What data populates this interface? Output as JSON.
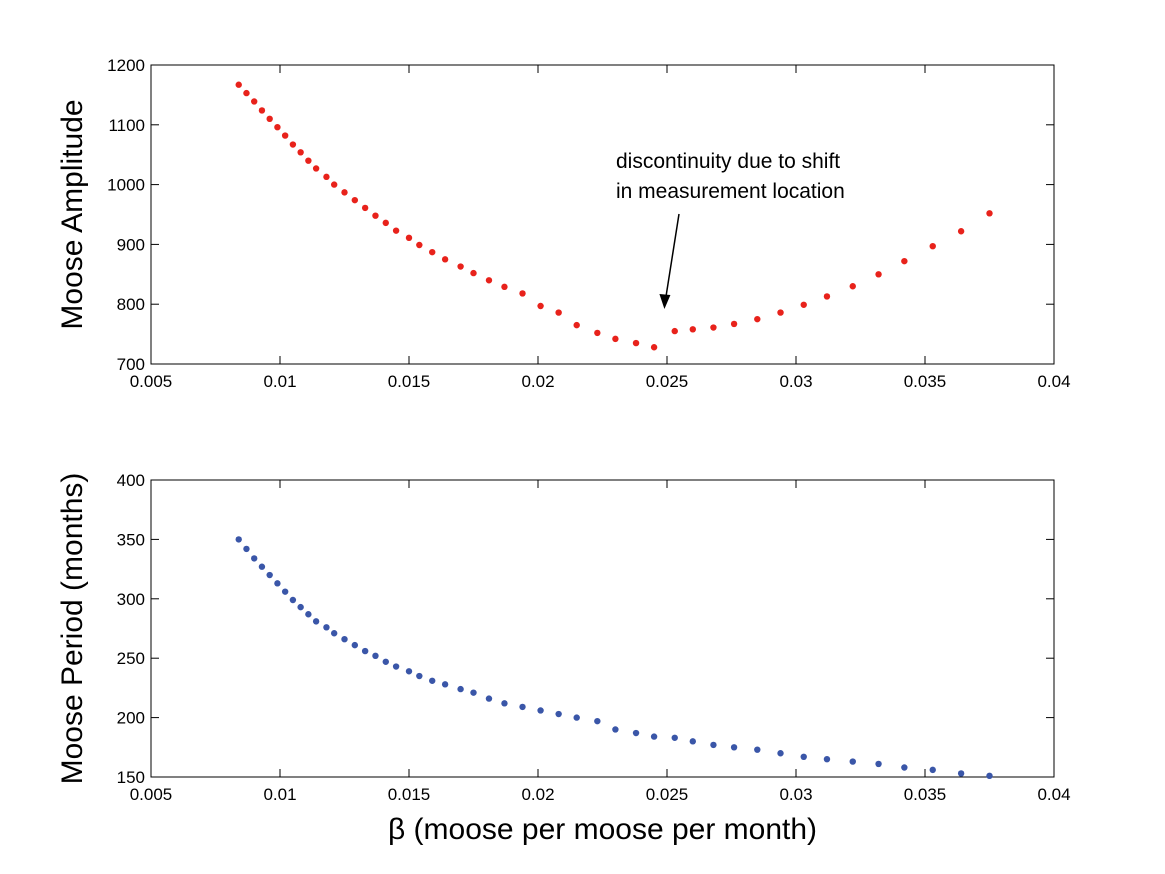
{
  "chart_data": [
    {
      "type": "scatter",
      "xlim": [
        0.005,
        0.04
      ],
      "ylim": [
        700,
        1200
      ],
      "xticks": [
        "0.005",
        "0.01",
        "0.015",
        "0.02",
        "0.025",
        "0.03",
        "0.035",
        "0.04"
      ],
      "yticks": [
        "700",
        "800",
        "900",
        "1000",
        "1100",
        "1200"
      ],
      "xlabel": "",
      "ylabel": "Moose Amplitude",
      "color": "#e8221b",
      "annotation": {
        "lines": [
          "discontinuity due to shift",
          "in measurement location"
        ],
        "arrow_tip": [
          0.0249,
          792
        ]
      },
      "x": [
        0.0084,
        0.0087,
        0.009,
        0.0093,
        0.0096,
        0.0099,
        0.0102,
        0.0105,
        0.0108,
        0.0111,
        0.0114,
        0.0118,
        0.0121,
        0.0125,
        0.0129,
        0.0133,
        0.0137,
        0.0141,
        0.0145,
        0.015,
        0.0154,
        0.0159,
        0.0164,
        0.017,
        0.0175,
        0.0181,
        0.0187,
        0.0194,
        0.0201,
        0.0208,
        0.0215,
        0.0223,
        0.023,
        0.0238,
        0.0245,
        0.0253,
        0.026,
        0.0268,
        0.0276,
        0.0285,
        0.0294,
        0.0303,
        0.0312,
        0.0322,
        0.0332,
        0.0342,
        0.0353,
        0.0364,
        0.0375
      ],
      "y": [
        1167,
        1153,
        1139,
        1124,
        1110,
        1096,
        1082,
        1067,
        1054,
        1040,
        1027,
        1013,
        1000,
        987,
        974,
        961,
        948,
        936,
        923,
        911,
        899,
        887,
        875,
        863,
        852,
        840,
        829,
        818,
        797,
        786,
        765,
        752,
        742,
        735,
        728,
        755,
        758,
        761,
        767,
        775,
        786,
        799,
        813,
        830,
        850,
        872,
        897,
        922,
        952
      ]
    },
    {
      "type": "scatter",
      "xlim": [
        0.005,
        0.04
      ],
      "ylim": [
        150,
        400
      ],
      "xticks": [
        "0.005",
        "0.01",
        "0.015",
        "0.02",
        "0.025",
        "0.03",
        "0.035",
        "0.04"
      ],
      "yticks": [
        "150",
        "200",
        "250",
        "300",
        "350",
        "400"
      ],
      "xlabel": "β (moose per moose per month)",
      "ylabel": "Moose Period (months)",
      "color": "#3a56a8",
      "x": [
        0.0084,
        0.0087,
        0.009,
        0.0093,
        0.0096,
        0.0099,
        0.0102,
        0.0105,
        0.0108,
        0.0111,
        0.0114,
        0.0118,
        0.0121,
        0.0125,
        0.0129,
        0.0133,
        0.0137,
        0.0141,
        0.0145,
        0.015,
        0.0154,
        0.0159,
        0.0164,
        0.017,
        0.0175,
        0.0181,
        0.0187,
        0.0194,
        0.0201,
        0.0208,
        0.0215,
        0.0223,
        0.023,
        0.0238,
        0.0245,
        0.0253,
        0.026,
        0.0268,
        0.0276,
        0.0285,
        0.0294,
        0.0303,
        0.0312,
        0.0322,
        0.0332,
        0.0342,
        0.0353,
        0.0364,
        0.0375
      ],
      "y": [
        350,
        342,
        334,
        327,
        320,
        313,
        306,
        299,
        293,
        287,
        281,
        276,
        271,
        266,
        261,
        256,
        252,
        247,
        243,
        239,
        235,
        231,
        228,
        224,
        221,
        216,
        212,
        209,
        206,
        203,
        200,
        197,
        190,
        187,
        184,
        183,
        180,
        177,
        175,
        173,
        170,
        167,
        165,
        163,
        161,
        158,
        156,
        153,
        151
      ]
    }
  ]
}
